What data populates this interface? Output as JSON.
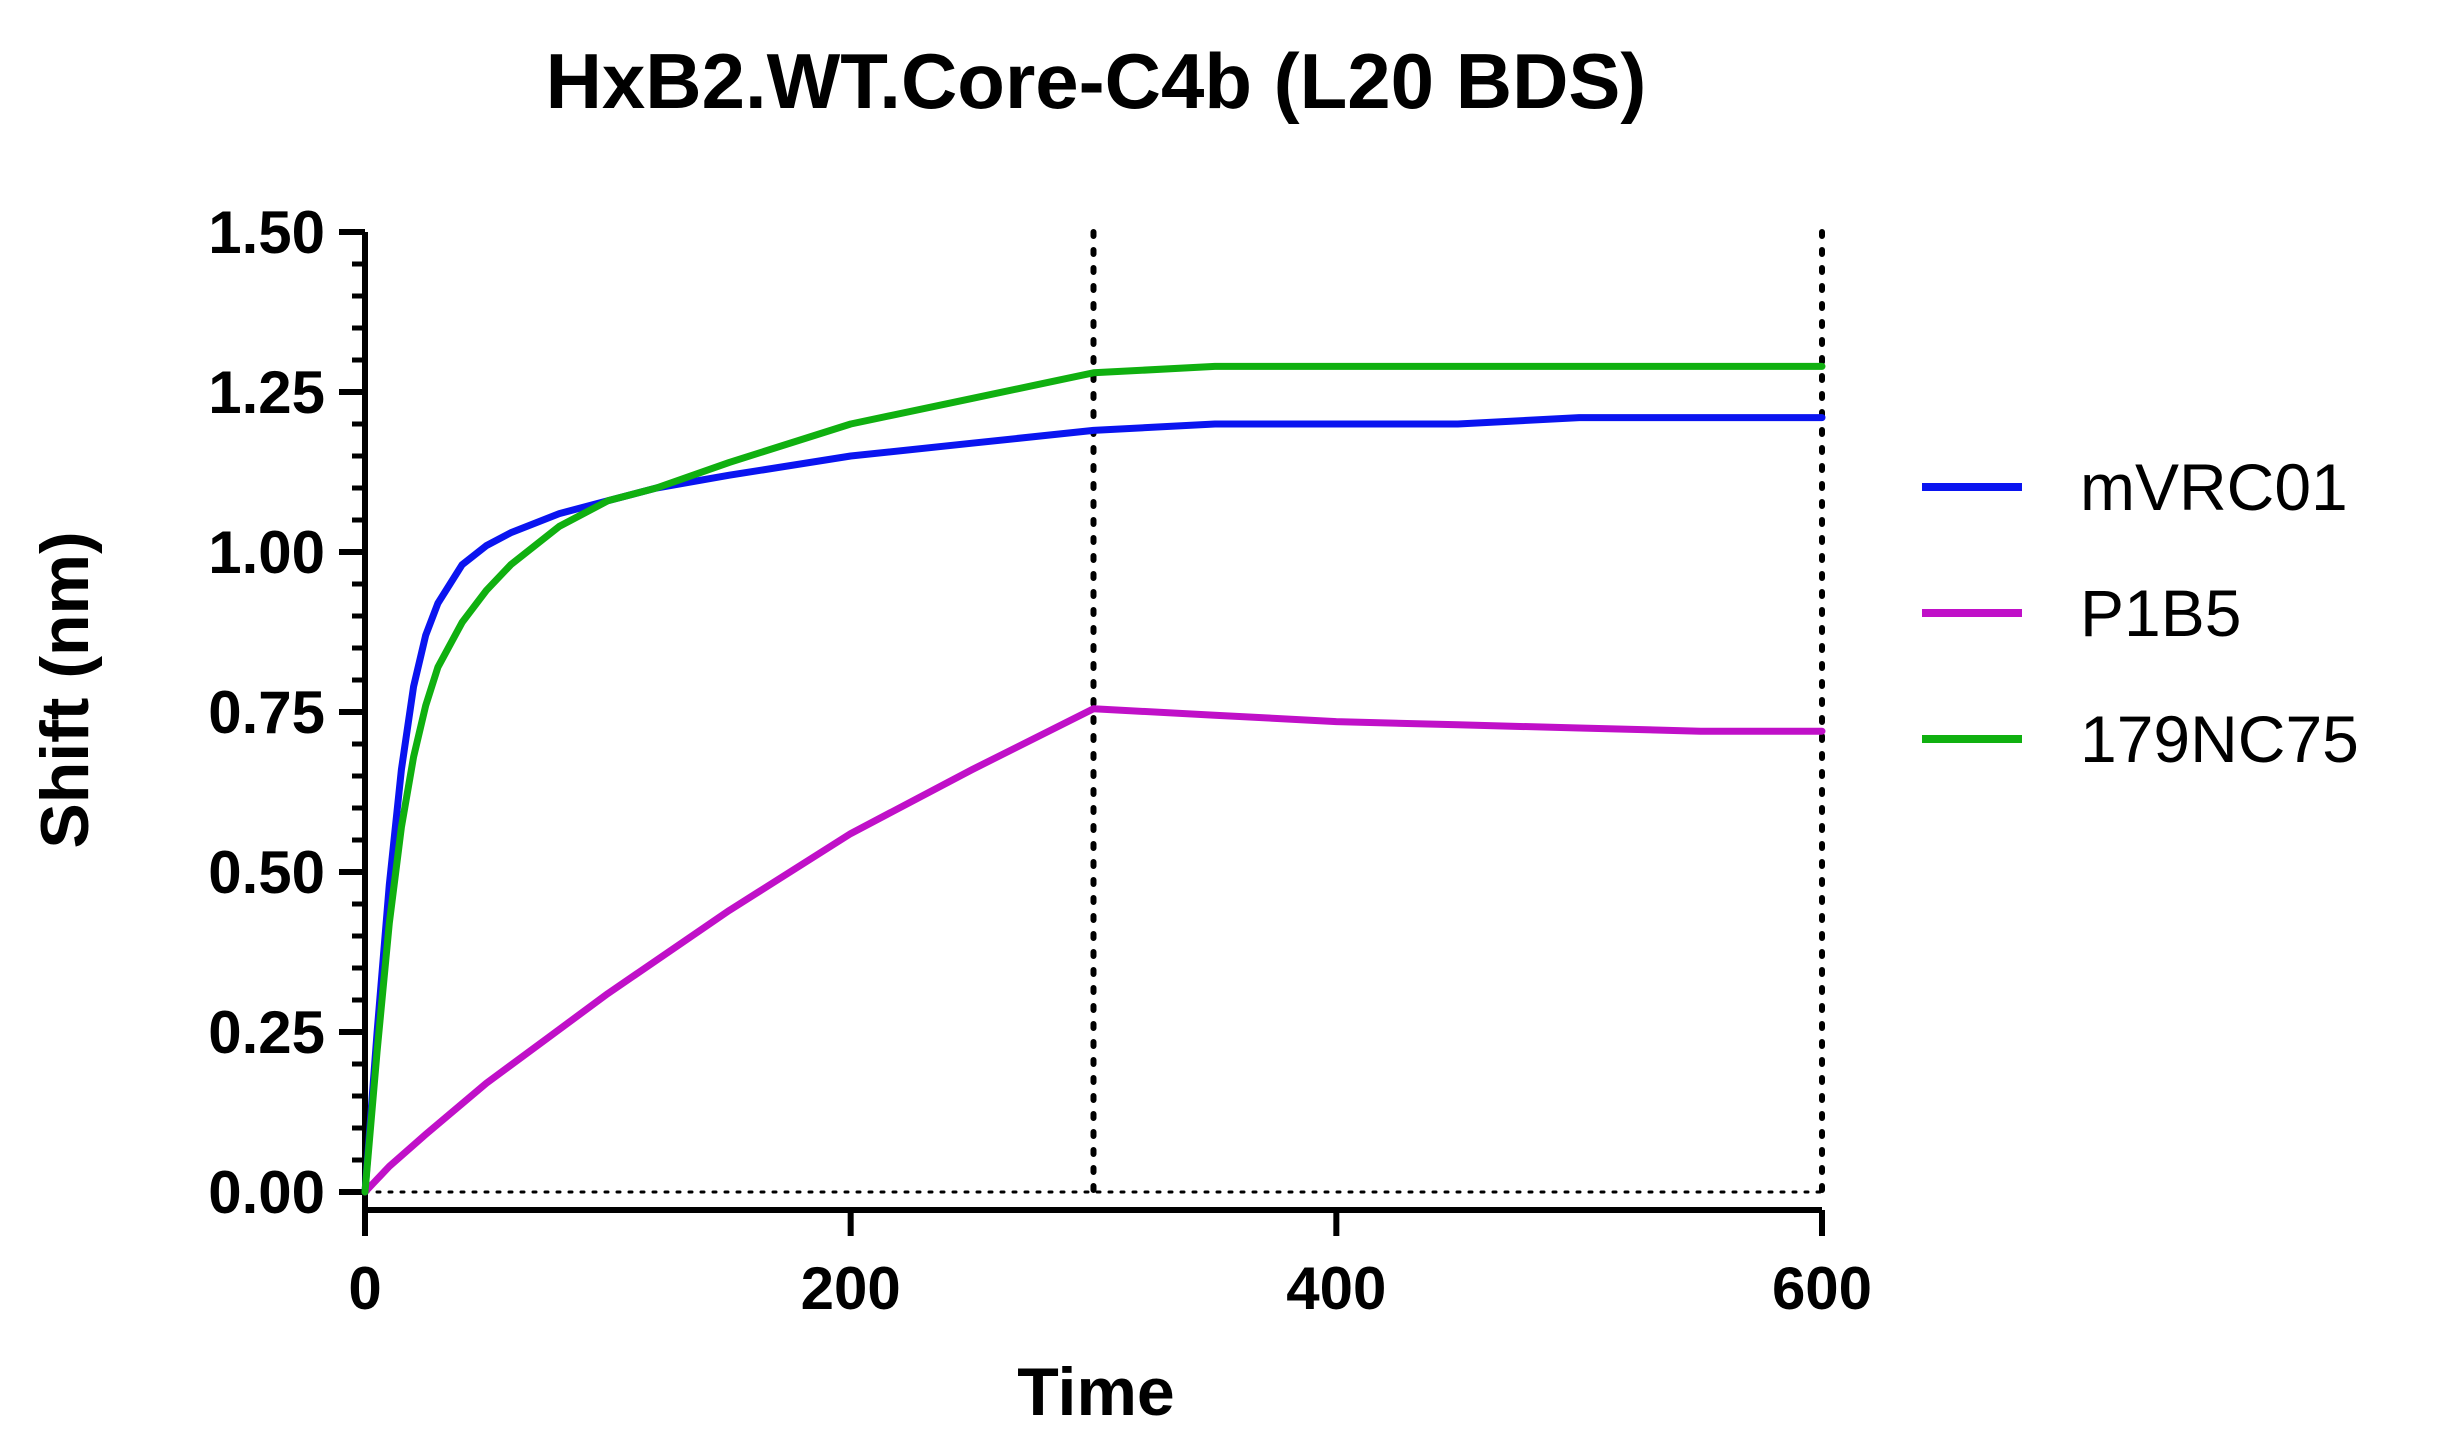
{
  "chart_data": {
    "type": "line",
    "title": "HxB2.WT.Core-C4b (L20 BDS)",
    "xlabel": "Time",
    "ylabel": "Shift (nm)",
    "xlim": [
      0,
      600
    ],
    "ylim": [
      0,
      1.5
    ],
    "x_ticks": [
      "0",
      "200",
      "400",
      "600"
    ],
    "y_ticks": [
      "0.00",
      "0.25",
      "0.50",
      "0.75",
      "1.00",
      "1.25",
      "1.50"
    ],
    "reference_lines": {
      "vertical_x": [
        300,
        600
      ],
      "horizontal_y": [
        0
      ]
    },
    "legend_position": "right",
    "series": [
      {
        "name": "mVRC01",
        "color": "#0a14f0",
        "x": [
          0,
          5,
          10,
          15,
          20,
          25,
          30,
          40,
          50,
          60,
          80,
          100,
          120,
          150,
          200,
          250,
          300,
          350,
          400,
          450,
          500,
          550,
          600
        ],
        "values": [
          0,
          0.25,
          0.48,
          0.66,
          0.79,
          0.87,
          0.92,
          0.98,
          1.01,
          1.03,
          1.06,
          1.08,
          1.1,
          1.12,
          1.15,
          1.17,
          1.19,
          1.2,
          1.2,
          1.2,
          1.21,
          1.21,
          1.21
        ]
      },
      {
        "name": "P1B5",
        "color": "#c010c8",
        "x": [
          0,
          10,
          25,
          50,
          75,
          100,
          150,
          200,
          250,
          300,
          350,
          400,
          450,
          500,
          550,
          600
        ],
        "values": [
          0,
          0.04,
          0.09,
          0.17,
          0.24,
          0.31,
          0.44,
          0.56,
          0.66,
          0.755,
          0.745,
          0.735,
          0.73,
          0.725,
          0.72,
          0.72
        ]
      },
      {
        "name": "179NC75",
        "color": "#10b010",
        "x": [
          0,
          5,
          10,
          15,
          20,
          25,
          30,
          40,
          50,
          60,
          80,
          100,
          120,
          150,
          200,
          250,
          300,
          350,
          400,
          450,
          500,
          550,
          600
        ],
        "values": [
          0,
          0.22,
          0.42,
          0.57,
          0.68,
          0.76,
          0.82,
          0.89,
          0.94,
          0.98,
          1.04,
          1.08,
          1.1,
          1.14,
          1.2,
          1.24,
          1.28,
          1.29,
          1.29,
          1.29,
          1.29,
          1.29,
          1.29
        ]
      }
    ]
  }
}
